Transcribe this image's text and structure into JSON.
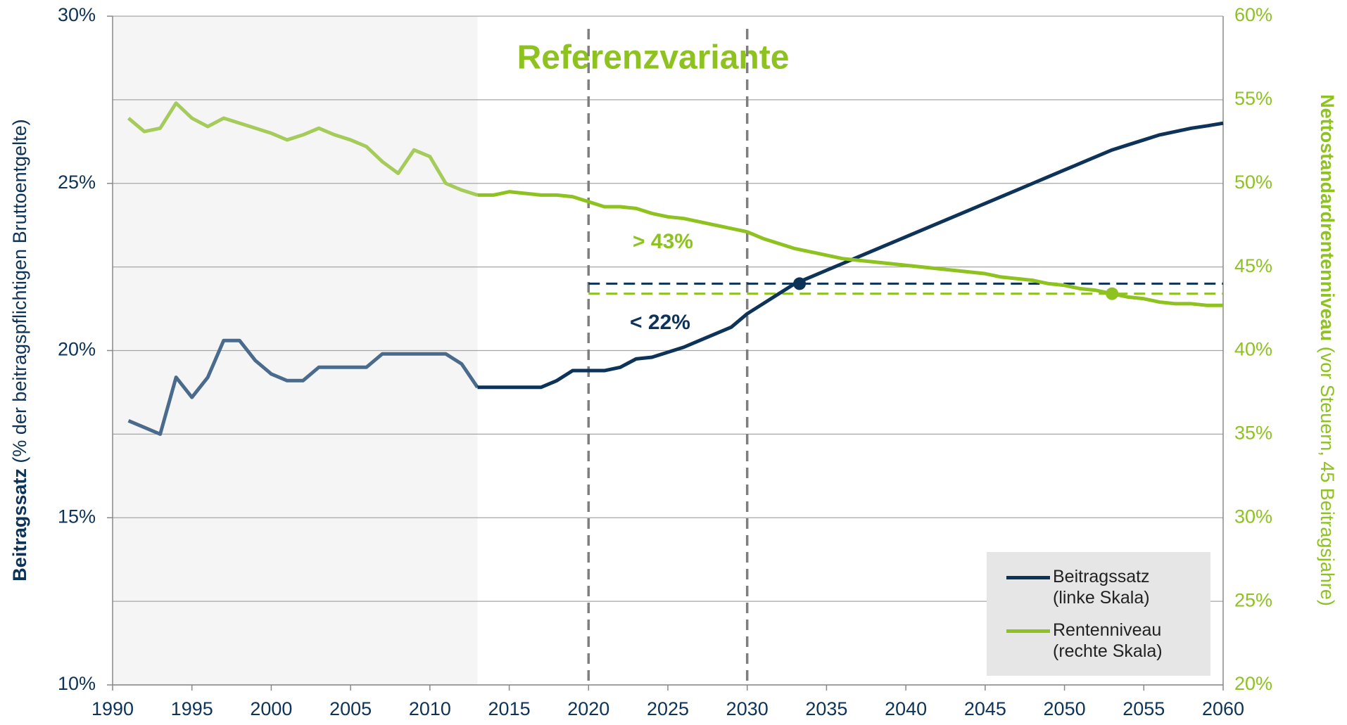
{
  "chart_data": {
    "type": "line",
    "title": "Referenzvariante",
    "y_label": {
      "bold": "Beitragssatz",
      "rest": "(% der beitragspflichtigen Bruttoentgelte)"
    },
    "y2_label": {
      "bold": "Nettostandardrentenniveau",
      "rest": "(vor Steuern, 45 Beitragsjahre)"
    },
    "annotations": [
      "> 43%",
      "< 22%"
    ],
    "x": [
      1991,
      1992,
      1993,
      1994,
      1995,
      1996,
      1997,
      1998,
      1999,
      2000,
      2001,
      2002,
      2003,
      2004,
      2005,
      2006,
      2007,
      2008,
      2009,
      2010,
      2011,
      2012,
      2013,
      2014,
      2015,
      2016,
      2017,
      2018,
      2019,
      2020,
      2021,
      2022,
      2023,
      2024,
      2025,
      2026,
      2027,
      2028,
      2029,
      2030,
      2031,
      2032,
      2033,
      2034,
      2035,
      2036,
      2037,
      2038,
      2039,
      2040,
      2041,
      2042,
      2043,
      2044,
      2045,
      2046,
      2047,
      2048,
      2049,
      2050,
      2051,
      2052,
      2053,
      2054,
      2055,
      2056,
      2057,
      2058,
      2059,
      2060
    ],
    "xlim": [
      1990,
      2060
    ],
    "xticks": [
      1990,
      1995,
      2000,
      2005,
      2010,
      2015,
      2020,
      2025,
      2030,
      2035,
      2040,
      2045,
      2050,
      2055,
      2060
    ],
    "ylim": [
      10,
      30
    ],
    "yticks": [
      {
        "value": 10,
        "label": "10%"
      },
      {
        "value": 15,
        "label": "15%"
      },
      {
        "value": 20,
        "label": "20%"
      },
      {
        "value": 25,
        "label": "25%"
      },
      {
        "value": 30,
        "label": "30%"
      }
    ],
    "y2lim": [
      20,
      60
    ],
    "y2ticks": [
      {
        "value": 20,
        "label": "20%"
      },
      {
        "value": 25,
        "label": "25%"
      },
      {
        "value": 30,
        "label": "30%"
      },
      {
        "value": 35,
        "label": "35%"
      },
      {
        "value": 40,
        "label": "40%"
      },
      {
        "value": 45,
        "label": "45%"
      },
      {
        "value": 50,
        "label": "50%"
      },
      {
        "value": 55,
        "label": "55%"
      },
      {
        "value": 60,
        "label": "60%"
      }
    ],
    "grid": true,
    "shaded_xrange": [
      1990,
      2013
    ],
    "vlines": [
      2020,
      2030
    ],
    "series": [
      {
        "name": "Beitragssatz (linke Skala)",
        "color": "#0d3358",
        "history_color": "#4a6b8c",
        "values": [
          17.9,
          17.7,
          17.5,
          19.2,
          18.6,
          19.2,
          20.3,
          20.3,
          19.7,
          19.3,
          19.1,
          19.1,
          19.5,
          19.5,
          19.5,
          19.5,
          19.9,
          19.9,
          19.9,
          19.9,
          19.9,
          19.6,
          18.9,
          18.9,
          18.9,
          18.9,
          18.9,
          19.1,
          19.4,
          19.4,
          19.4,
          19.5,
          19.75,
          19.8,
          19.95,
          20.1,
          20.3,
          20.5,
          20.7,
          21.1,
          21.4,
          21.7,
          22.0,
          22.2,
          22.4,
          22.6,
          22.8,
          23.0,
          23.2,
          23.4,
          23.6,
          23.8,
          24.0,
          24.2,
          24.4,
          24.6,
          24.8,
          25.0,
          25.2,
          25.4,
          25.6,
          25.8,
          26.0,
          26.15,
          26.3,
          26.45,
          26.55,
          26.65,
          26.72,
          26.8
        ]
      },
      {
        "name": "Rentenniveau (rechte Skala)",
        "color": "#8dc21f",
        "history_color": "#a5cc5a",
        "axis": "y2",
        "values": [
          53.9,
          53.1,
          53.3,
          54.8,
          53.9,
          53.4,
          53.9,
          53.6,
          53.3,
          53.0,
          52.6,
          52.9,
          53.3,
          52.9,
          52.6,
          52.2,
          51.3,
          50.6,
          52.0,
          51.6,
          50.0,
          49.6,
          49.3,
          49.3,
          49.5,
          49.4,
          49.3,
          49.3,
          49.2,
          48.9,
          48.6,
          48.6,
          48.5,
          48.2,
          48.0,
          47.9,
          47.7,
          47.5,
          47.3,
          47.1,
          46.7,
          46.4,
          46.1,
          45.9,
          45.7,
          45.5,
          45.4,
          45.3,
          45.2,
          45.1,
          45.0,
          44.9,
          44.8,
          44.7,
          44.6,
          44.4,
          44.3,
          44.2,
          44.0,
          43.9,
          43.7,
          43.6,
          43.4,
          43.2,
          43.1,
          42.9,
          42.8,
          42.8,
          42.7,
          42.7
        ]
      }
    ],
    "reference_lines": [
      {
        "axis": "y",
        "value": 22,
        "x_start": 2020,
        "color": "#0d3358"
      },
      {
        "axis": "y2",
        "value": 43.4,
        "x_start": 2020,
        "color": "#8dc21f"
      }
    ],
    "markers": [
      {
        "axis": "y",
        "x": 2033.3,
        "y": 22,
        "color": "#0d3358"
      },
      {
        "axis": "y2",
        "x": 2053,
        "y": 43.4,
        "color": "#8dc21f"
      }
    ]
  }
}
